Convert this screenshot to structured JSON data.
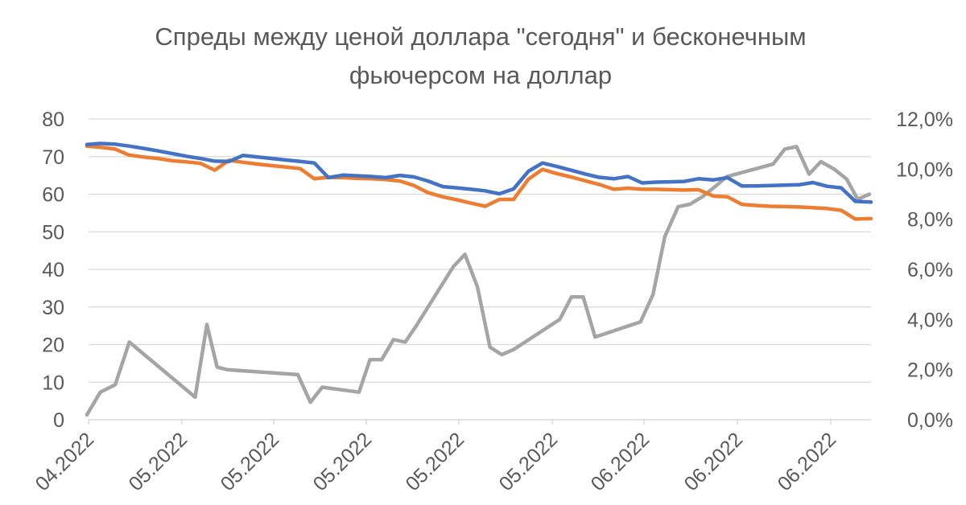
{
  "chart_data": {
    "type": "line",
    "title_lines": [
      "Спреды между ценой доллара \"сегодня\" и бесконечным",
      "фьючерсом на доллар"
    ],
    "x_tick_labels": [
      "04.2022",
      "05.2022",
      "05.2022",
      "05.2022",
      "05.2022",
      "05.2022",
      "06.2022",
      "06.2022",
      "06.2022"
    ],
    "y_left": {
      "min": 0,
      "max": 80,
      "step": 10,
      "tick_labels": [
        "0",
        "10",
        "20",
        "30",
        "40",
        "50",
        "60",
        "70",
        "80"
      ]
    },
    "y_right": {
      "min": 0,
      "max": 12,
      "step": 2,
      "tick_labels": [
        "0,0%",
        "2,0%",
        "4,0%",
        "6,0%",
        "8,0%",
        "10,0%",
        "12,0%"
      ]
    },
    "grid": true,
    "x_range": [
      0,
      100
    ],
    "series": [
      {
        "axis": "left",
        "color": "#4472C4",
        "x": [
          0,
          1.7,
          3.6,
          5.4,
          7.2,
          9.1,
          10.9,
          12.7,
          14.5,
          16.3,
          18.1,
          19.9,
          21.8,
          23.6,
          25.4,
          27.2,
          29.0,
          30.8,
          32.7,
          34.5,
          36.3,
          38.1,
          39.9,
          41.7,
          43.5,
          45.4,
          47.2,
          49.0,
          50.8,
          52.6,
          54.4,
          56.3,
          58.1,
          59.9,
          61.7,
          63.5,
          65.3,
          67.2,
          69.0,
          70.8,
          72.6,
          74.4,
          76.2,
          78.0,
          79.9,
          81.7,
          83.5,
          85.3,
          87.1,
          88.9,
          90.8,
          92.6,
          94.4,
          96.2,
          98.0,
          100
        ],
        "y": [
          73.2,
          73.5,
          73.3,
          72.8,
          72.2,
          71.5,
          70.8,
          70.1,
          69.5,
          68.8,
          68.7,
          70.3,
          69.9,
          69.5,
          69.1,
          68.7,
          68.3,
          64.4,
          65.1,
          64.9,
          64.7,
          64.4,
          65.0,
          64.6,
          63.5,
          62.0,
          61.7,
          61.3,
          60.9,
          60.1,
          61.4,
          66.1,
          68.3,
          67.4,
          66.4,
          65.4,
          64.5,
          64.1,
          64.7,
          63.0,
          63.2,
          63.3,
          63.4,
          64.1,
          63.8,
          64.4,
          62.2,
          62.2,
          62.3,
          62.4,
          62.5,
          63.1,
          62.1,
          61.7,
          58.1,
          57.9
        ]
      },
      {
        "axis": "left",
        "color": "#ED7D31",
        "x": [
          0,
          1.7,
          3.6,
          5.4,
          7.2,
          9.1,
          10.9,
          12.7,
          14.5,
          16.3,
          18.1,
          19.9,
          21.8,
          23.6,
          25.4,
          27.2,
          29.0,
          30.8,
          32.7,
          34.5,
          36.3,
          38.1,
          39.9,
          41.7,
          43.5,
          45.4,
          47.2,
          49.0,
          50.8,
          52.6,
          54.4,
          56.3,
          58.1,
          59.9,
          61.7,
          63.5,
          65.3,
          67.2,
          69.0,
          70.8,
          72.6,
          74.4,
          76.2,
          78.0,
          79.9,
          81.7,
          83.5,
          85.3,
          87.1,
          88.9,
          90.8,
          92.6,
          94.4,
          96.2,
          98.0,
          100
        ],
        "y": [
          72.8,
          72.5,
          72.0,
          70.4,
          69.9,
          69.5,
          68.9,
          68.6,
          68.2,
          66.4,
          69.0,
          68.5,
          68.0,
          67.6,
          67.2,
          66.8,
          64.1,
          64.5,
          64.4,
          64.2,
          64.1,
          63.9,
          63.5,
          62.3,
          60.4,
          59.3,
          58.5,
          57.6,
          56.8,
          58.6,
          58.6,
          64.0,
          66.6,
          65.5,
          64.6,
          63.6,
          62.6,
          61.3,
          61.6,
          61.3,
          61.3,
          61.2,
          61.1,
          61.2,
          59.5,
          59.3,
          57.3,
          57.0,
          56.8,
          56.7,
          56.6,
          56.4,
          56.2,
          55.7,
          53.4,
          53.5
        ]
      },
      {
        "axis": "right",
        "color": "#A5A5A5",
        "x": [
          0,
          1.7,
          3.6,
          5.4,
          13.8,
          15.3,
          16.6,
          17.9,
          26.9,
          28.5,
          30.0,
          34.7,
          36.1,
          37.6,
          39.1,
          40.6,
          42.1,
          46.7,
          48.2,
          49.8,
          51.4,
          52.9,
          54.4,
          60.3,
          61.8,
          63.3,
          64.8,
          70.6,
          72.2,
          73.7,
          75.4,
          76.9,
          78.5,
          80.1,
          81.6,
          87.5,
          89.0,
          90.5,
          92.1,
          93.6,
          95.3,
          96.9,
          98.3,
          99.8
        ],
        "y": [
          0.2,
          1.1,
          1.4,
          3.1,
          0.9,
          3.8,
          2.1,
          2.0,
          1.8,
          0.7,
          1.3,
          1.1,
          2.4,
          2.4,
          3.2,
          3.1,
          3.8,
          6.1,
          6.6,
          5.3,
          2.9,
          2.6,
          2.8,
          4.0,
          4.9,
          4.9,
          3.3,
          3.9,
          5.0,
          7.3,
          8.5,
          8.6,
          8.9,
          9.3,
          9.7,
          10.2,
          10.8,
          10.9,
          9.8,
          10.3,
          10.0,
          9.6,
          8.8,
          9.0
        ]
      }
    ]
  }
}
